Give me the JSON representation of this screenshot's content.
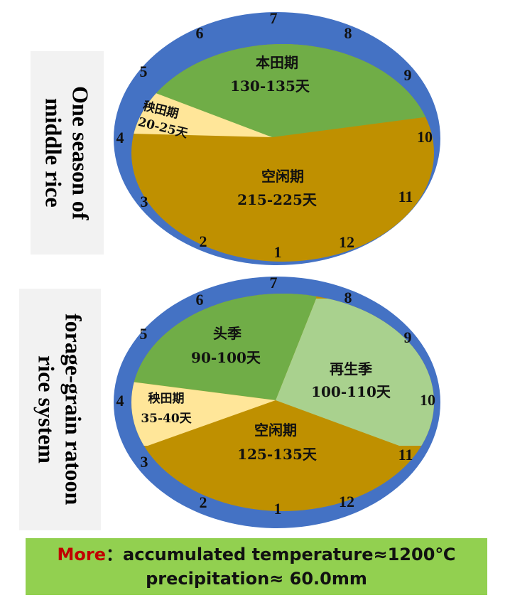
{
  "top_system": {
    "label": "One season of\nmiddle rice",
    "months": [
      "1",
      "2",
      "3",
      "4",
      "5",
      "6",
      "7",
      "8",
      "9",
      "10",
      "11",
      "12"
    ],
    "segments": [
      {
        "name": "本田期",
        "days": "130-135天",
        "color": "#70ad47"
      },
      {
        "name": "秧田期",
        "days": "20-25天",
        "color": "#ffe699"
      },
      {
        "name": "空闲期",
        "days": "215-225天",
        "color": "#bf9000"
      }
    ]
  },
  "bottom_system": {
    "label": "forage-grain ratoon\nrice system",
    "months": [
      "1",
      "2",
      "3",
      "4",
      "5",
      "6",
      "7",
      "8",
      "9",
      "10",
      "11",
      "12"
    ],
    "segments": [
      {
        "name": "头季",
        "days": "90-100天",
        "color": "#70ad47"
      },
      {
        "name": "再生季",
        "days": "100-110天",
        "color": "#a9d18e"
      },
      {
        "name": "秧田期",
        "days": "35-40天",
        "color": "#ffe699"
      },
      {
        "name": "空闲期",
        "days": "125-135天",
        "color": "#bf9000"
      }
    ]
  },
  "ring_color": "#4472c4",
  "footer": {
    "more": "More",
    "line1": "：accumulated temperature≈1200℃",
    "line2": "precipitation≈ 60.0mm"
  }
}
